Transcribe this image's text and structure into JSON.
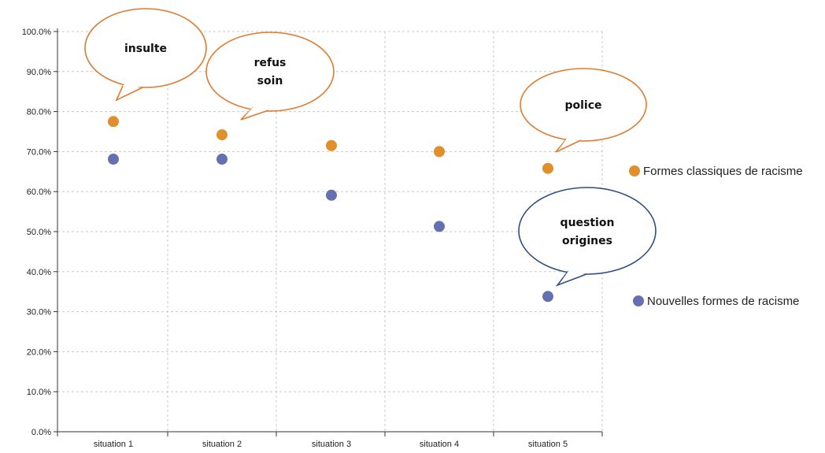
{
  "colors": {
    "classic": "#e08f2a",
    "new": "#6570b0",
    "bubble_orange": "#e07a2c",
    "bubble_blue": "#2f4d85",
    "grid": "#c8c8c8",
    "axis": "#333333"
  },
  "chart_data": {
    "type": "scatter",
    "categories": [
      "situation 1",
      "situation 2",
      "situation 3",
      "situation 4",
      "situation 5"
    ],
    "series": [
      {
        "name": "Formes classiques de racisme",
        "values": [
          77.5,
          74.2,
          71.5,
          70.0,
          65.8
        ]
      },
      {
        "name": "Nouvelles formes de racisme",
        "values": [
          68.1,
          68.1,
          59.1,
          51.3,
          33.8
        ]
      }
    ],
    "y_ticks": [
      "0.0%",
      "10.0%",
      "20.0%",
      "30.0%",
      "40.0%",
      "50.0%",
      "60.0%",
      "70.0%",
      "80.0%",
      "90.0%",
      "100.0%"
    ],
    "ylim": [
      0,
      100
    ],
    "grid": true,
    "legend_position": "right",
    "annotations": [
      {
        "lines": [
          "insulte"
        ],
        "style": "orange"
      },
      {
        "lines": [
          "refus",
          "soin"
        ],
        "style": "orange"
      },
      {
        "lines": [
          "police"
        ],
        "style": "orange"
      },
      {
        "lines": [
          "question",
          "origines"
        ],
        "style": "blue"
      }
    ]
  }
}
